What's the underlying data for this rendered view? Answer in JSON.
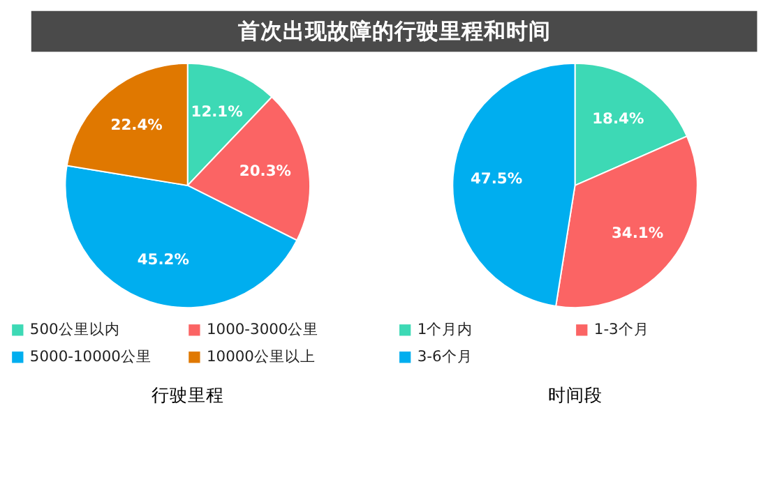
{
  "chart_data": [
    {
      "type": "other",
      "title": "首次出现故障的行驶里程和时间"
    },
    {
      "type": "pie",
      "xlabel": "行驶里程",
      "categories": [
        "500公里以内",
        "1000-3000公里",
        "5000-10000公里",
        "10000公里以上"
      ],
      "values": [
        12.1,
        20.3,
        45.2,
        22.4
      ],
      "value_labels": [
        "12.1%",
        "20.3%",
        "45.2%",
        "22.4%"
      ],
      "colors": [
        "#3dd9b5",
        "#fb6464",
        "#00aeef",
        "#e07800"
      ],
      "legend": "bottom"
    },
    {
      "type": "pie",
      "xlabel": "时间段",
      "categories": [
        "1个月内",
        "1-3个月",
        "3-6个月"
      ],
      "values": [
        18.4,
        34.1,
        47.5
      ],
      "value_labels": [
        "18.4%",
        "34.1%",
        "47.5%"
      ],
      "colors": [
        "#3dd9b5",
        "#fb6464",
        "#00aeef"
      ],
      "legend": "bottom"
    }
  ]
}
